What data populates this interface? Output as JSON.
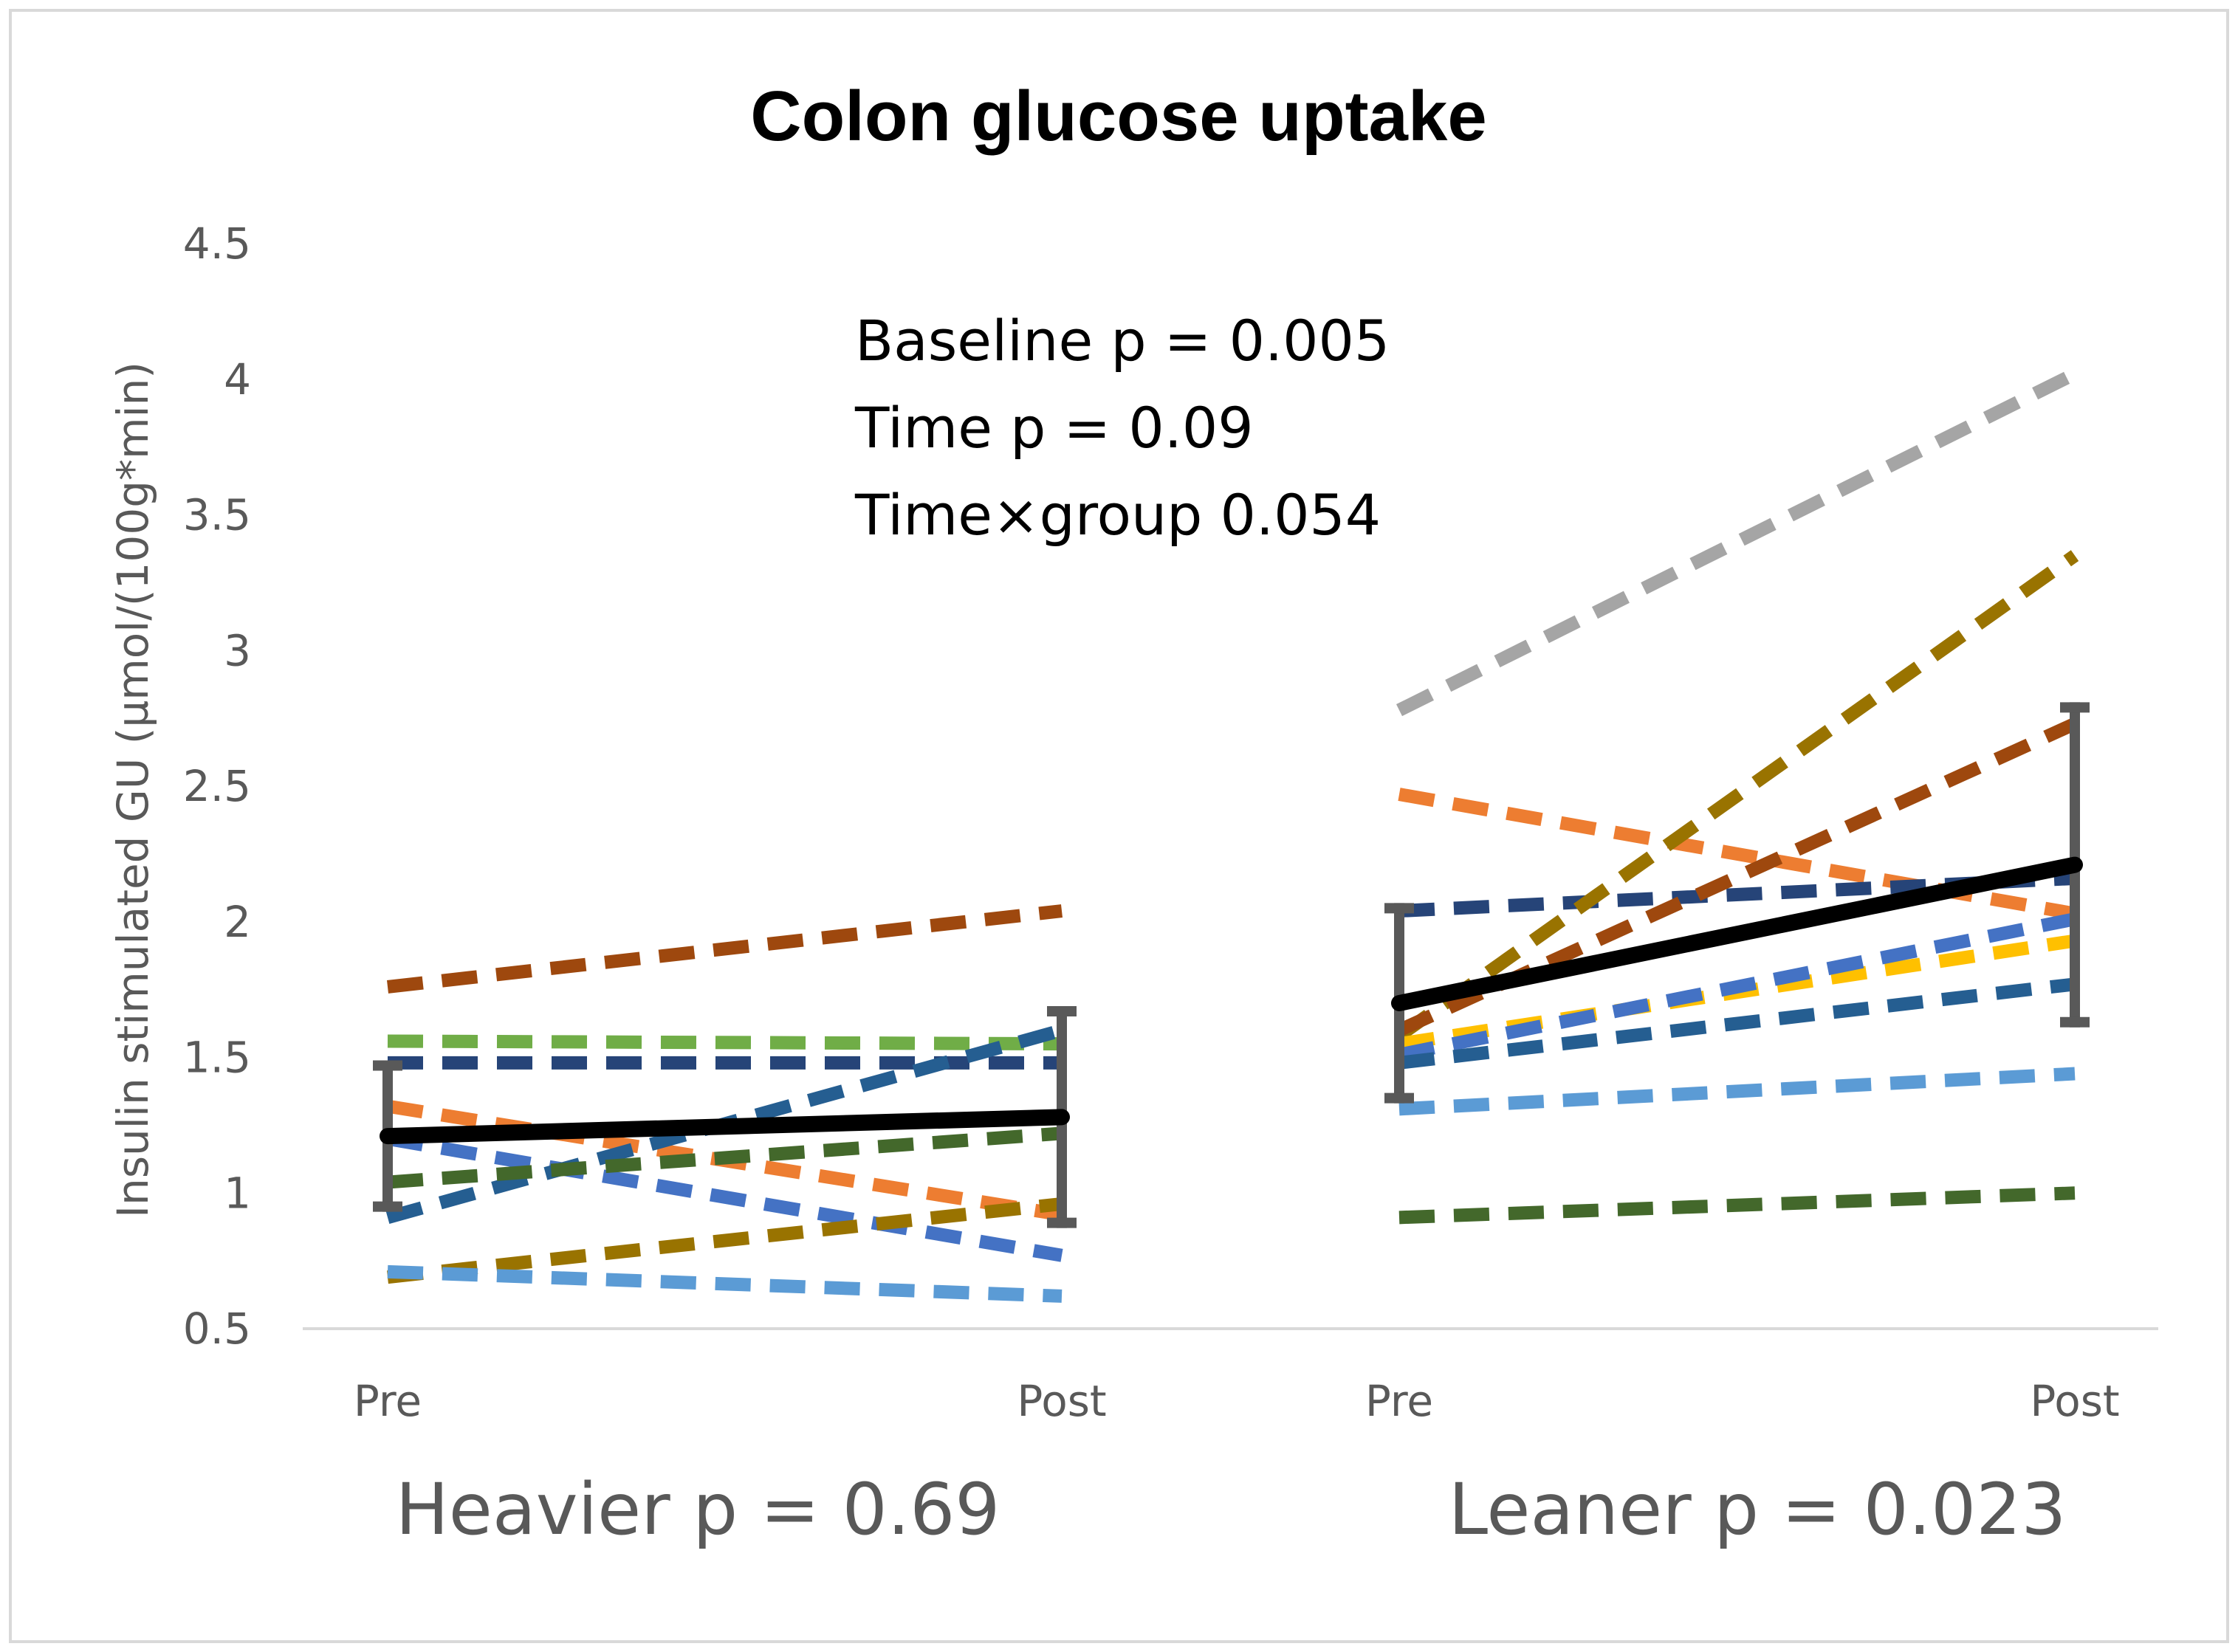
{
  "chart_data": {
    "type": "line",
    "title": "Colon glucose uptake",
    "ylabel": "Insulin stimulated GU (µmol/(100g*min)",
    "xlabel": "",
    "ylim": [
      0.5,
      4.5
    ],
    "yticks": [
      "0.5",
      "1",
      "1.5",
      "2",
      "2.5",
      "3",
      "3.5",
      "4",
      "4.5"
    ],
    "ytick_values": [
      0.5,
      1,
      1.5,
      2,
      2.5,
      3,
      3.5,
      4,
      4.5
    ],
    "grid": false,
    "annotations": [
      "Baseline p = 0.005",
      "Time p = 0.09",
      "Time×group 0.054"
    ],
    "groups": [
      {
        "name": "Heavier",
        "label": "Heavier p = 0.69",
        "categories": [
          "Pre",
          "Post"
        ],
        "mean": {
          "values": [
            1.21,
            1.28
          ],
          "color": "#000000"
        },
        "error_bars": [
          {
            "low": 0.95,
            "high": 1.47
          },
          {
            "low": 0.89,
            "high": 1.67
          }
        ],
        "series": [
          {
            "values": [
              1.76,
              2.04
            ],
            "color": "#9E480E"
          },
          {
            "values": [
              1.56,
              1.55
            ],
            "color": "#70AD47"
          },
          {
            "values": [
              1.48,
              1.48
            ],
            "color": "#264478"
          },
          {
            "values": [
              1.32,
              0.92
            ],
            "color": "#ED7D31"
          },
          {
            "values": [
              1.2,
              0.77
            ],
            "color": "#4472C4"
          },
          {
            "values": [
              0.91,
              1.6
            ],
            "color": "#255E91"
          },
          {
            "values": [
              1.04,
              1.22
            ],
            "color": "#43682B"
          },
          {
            "values": [
              0.69,
              0.96
            ],
            "color": "#997300"
          },
          {
            "values": [
              0.71,
              0.62
            ],
            "color": "#5B9BD5"
          }
        ]
      },
      {
        "name": "Leaner",
        "label": "Leaner p = 0.023",
        "categories": [
          "Pre",
          "Post"
        ],
        "mean": {
          "values": [
            1.7,
            2.21
          ],
          "color": "#000000"
        },
        "error_bars": [
          {
            "low": 1.35,
            "high": 2.05
          },
          {
            "low": 1.63,
            "high": 2.79
          }
        ],
        "series": [
          {
            "values": [
              2.78,
              4.02
            ],
            "color": "#A5A5A5"
          },
          {
            "values": [
              2.47,
              2.03
            ],
            "color": "#ED7D31"
          },
          {
            "values": [
              2.04,
              2.16
            ],
            "color": "#264478"
          },
          {
            "values": [
              1.58,
              3.35
            ],
            "color": "#997300"
          },
          {
            "values": [
              1.6,
              2.73
            ],
            "color": "#9E480E"
          },
          {
            "values": [
              1.55,
              1.93
            ],
            "color": "#FFC000"
          },
          {
            "values": [
              1.51,
              2.01
            ],
            "color": "#4472C4"
          },
          {
            "values": [
              1.48,
              1.77
            ],
            "color": "#255E91"
          },
          {
            "values": [
              1.31,
              1.44
            ],
            "color": "#5B9BD5"
          },
          {
            "values": [
              0.91,
              1.0
            ],
            "color": "#43682B"
          }
        ]
      }
    ]
  }
}
